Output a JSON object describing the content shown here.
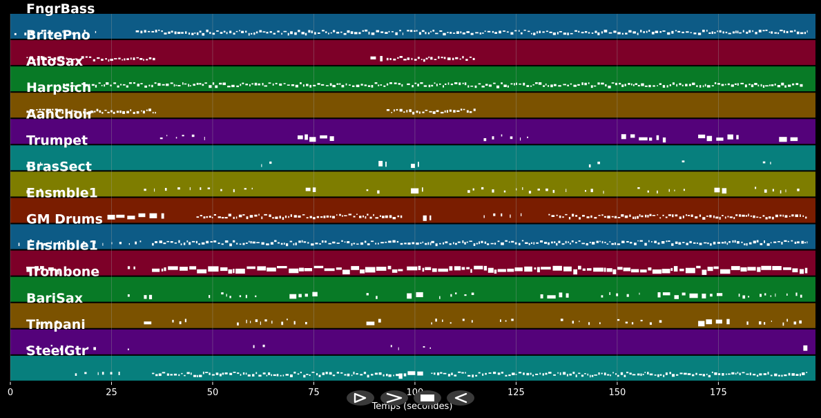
{
  "colors": {
    "background": "#000000",
    "track_palette": [
      "#0d5b86",
      "#7d0028",
      "#087a26",
      "#7b5200",
      "#54027a",
      "#077f7d",
      "#7e7d00",
      "#7a1d00"
    ],
    "note": "#ffffff",
    "grid": "#a0a0a0"
  },
  "xaxis": {
    "label": "Temps (secondes)",
    "min": 0,
    "max": 199,
    "ticks": [
      0,
      25,
      50,
      75,
      100,
      125,
      150,
      175
    ]
  },
  "tracks": [
    {
      "name": "FngrBass",
      "color": "#0d5b86",
      "segments": [
        [
          1,
          22,
          "sparse"
        ],
        [
          31,
          97,
          "dense"
        ],
        [
          98,
          197,
          "dense"
        ]
      ]
    },
    {
      "name": "BritePno",
      "color": "#7d0028",
      "segments": [
        [
          4,
          36,
          "dense"
        ],
        [
          89,
          92,
          "block"
        ],
        [
          93,
          115,
          "dense"
        ]
      ]
    },
    {
      "name": "AltoSax",
      "color": "#087a26",
      "segments": [
        [
          13,
          97,
          "dense"
        ],
        [
          98,
          196,
          "dense"
        ]
      ]
    },
    {
      "name": "Harpsich",
      "color": "#7b5200",
      "segments": [
        [
          4,
          36,
          "dense"
        ],
        [
          93,
          115,
          "dense"
        ]
      ]
    },
    {
      "name": "AahChoir",
      "color": "#54027a",
      "segments": [
        [
          37,
          48,
          "sparse"
        ],
        [
          71,
          80,
          "block"
        ],
        [
          117,
          128,
          "sparse"
        ],
        [
          151,
          162,
          "block"
        ],
        [
          170,
          180,
          "block"
        ],
        [
          190,
          195,
          "block"
        ]
      ]
    },
    {
      "name": "Trumpet",
      "color": "#077f7d",
      "segments": [
        [
          4,
          12,
          "sparse"
        ],
        [
          62,
          66,
          "sparse"
        ],
        [
          91,
          93,
          "block"
        ],
        [
          99,
          101,
          "block"
        ],
        [
          143,
          146,
          "sparse"
        ],
        [
          166,
          168,
          "sparse"
        ],
        [
          186,
          188,
          "sparse"
        ]
      ]
    },
    {
      "name": "BrasSect",
      "color": "#7e7d00",
      "segments": [
        [
          4,
          12,
          "sparse"
        ],
        [
          33,
          61,
          "sparse"
        ],
        [
          73,
          76,
          "block"
        ],
        [
          88,
          92,
          "sparse"
        ],
        [
          99,
          102,
          "block"
        ],
        [
          113,
          120,
          "sparse"
        ],
        [
          122,
          138,
          "sparse"
        ],
        [
          142,
          147,
          "sparse"
        ],
        [
          155,
          167,
          "sparse"
        ],
        [
          174,
          177,
          "block"
        ],
        [
          184,
          197,
          "sparse"
        ]
      ]
    },
    {
      "name": "Ensmble1",
      "color": "#7a1d00",
      "segments": [
        [
          24,
          38,
          "block"
        ],
        [
          46,
          97,
          "dense"
        ],
        [
          102,
          104,
          "block"
        ],
        [
          117,
          128,
          "sparse"
        ],
        [
          133,
          197,
          "dense"
        ]
      ]
    },
    {
      "name": "GM Drums",
      "color": "#0d5b86",
      "segments": [
        [
          2,
          34,
          "sparse"
        ],
        [
          35,
          104,
          "dense"
        ],
        [
          104,
          197,
          "dense"
        ]
      ]
    },
    {
      "name": "Ensmble1",
      "color": "#7d0028",
      "segments": [
        [
          4,
          12,
          "block"
        ],
        [
          29,
          31,
          "sparse"
        ],
        [
          35,
          97,
          "thick"
        ],
        [
          98,
          197,
          "thick"
        ]
      ]
    },
    {
      "name": "Trombone",
      "color": "#087a26",
      "segments": [
        [
          29,
          31,
          "sparse"
        ],
        [
          33,
          35,
          "block"
        ],
        [
          49,
          61,
          "sparse"
        ],
        [
          69,
          76,
          "block"
        ],
        [
          88,
          92,
          "sparse"
        ],
        [
          98,
          102,
          "block"
        ],
        [
          106,
          115,
          "sparse"
        ],
        [
          131,
          138,
          "block"
        ],
        [
          146,
          156,
          "sparse"
        ],
        [
          160,
          176,
          "block"
        ],
        [
          180,
          197,
          "sparse"
        ]
      ]
    },
    {
      "name": "BariSax",
      "color": "#7b5200",
      "segments": [
        [
          7,
          12,
          "sparse"
        ],
        [
          33,
          35,
          "block"
        ],
        [
          40,
          44,
          "sparse"
        ],
        [
          56,
          75,
          "sparse"
        ],
        [
          88,
          92,
          "block"
        ],
        [
          104,
          115,
          "sparse"
        ],
        [
          121,
          125,
          "sparse"
        ],
        [
          136,
          146,
          "sparse"
        ],
        [
          150,
          162,
          "sparse"
        ],
        [
          170,
          178,
          "block"
        ],
        [
          182,
          197,
          "sparse"
        ]
      ]
    },
    {
      "name": "Timpani",
      "color": "#54027a",
      "segments": [
        [
          4,
          5,
          "sparse"
        ],
        [
          10,
          14,
          "sparse"
        ],
        [
          19,
          23,
          "sparse"
        ],
        [
          29,
          31,
          "sparse"
        ],
        [
          60,
          63,
          "sparse"
        ],
        [
          94,
          96,
          "sparse"
        ],
        [
          102,
          105,
          "sparse"
        ],
        [
          196,
          197,
          "block"
        ]
      ]
    },
    {
      "name": "SteelGtr",
      "color": "#077f7d",
      "segments": [
        [
          16,
          29,
          "sparse"
        ],
        [
          35,
          96,
          "dense"
        ],
        [
          96,
          102,
          "block"
        ],
        [
          104,
          197,
          "dense"
        ]
      ]
    }
  ],
  "controls": [
    {
      "name": "play-button",
      "icon": "play-icon"
    },
    {
      "name": "next-button",
      "icon": "chevron-right-icon"
    },
    {
      "name": "stop-button",
      "icon": "stop-icon"
    },
    {
      "name": "rewind-button",
      "icon": "rewind-icon"
    }
  ]
}
